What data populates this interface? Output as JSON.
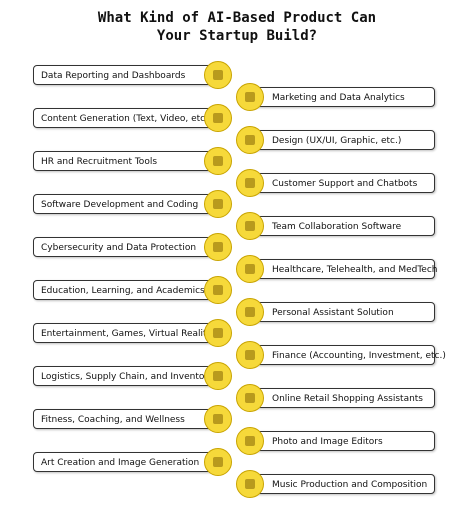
{
  "title": [
    "What Kind of AI-Based Product Can",
    "Your Startup Build?"
  ],
  "left": [
    "Data Reporting and Dashboards",
    "Content Generation (Text, Video, etc.)",
    "HR and Recruitment Tools",
    "Software Development and Coding",
    "Cybersecurity and Data Protection",
    "Education, Learning, and Academics",
    "Entertainment, Games, Virtual Reality",
    "Logistics, Supply Chain, and Inventory",
    "Fitness, Coaching, and Wellness",
    "Art Creation and Image Generation"
  ],
  "right": [
    "Marketing and Data Analytics",
    "Design (UX/UI, Graphic, etc.)",
    "Customer Support and Chatbots",
    "Team Collaboration Software",
    "Healthcare, Telehealth, and MedTech",
    "Personal Assistant Solution",
    "Finance (Accounting, Investment, etc.)",
    "Online Retail Shopping Assistants",
    "Photo and Image Editors",
    "Music Production and Composition"
  ]
}
